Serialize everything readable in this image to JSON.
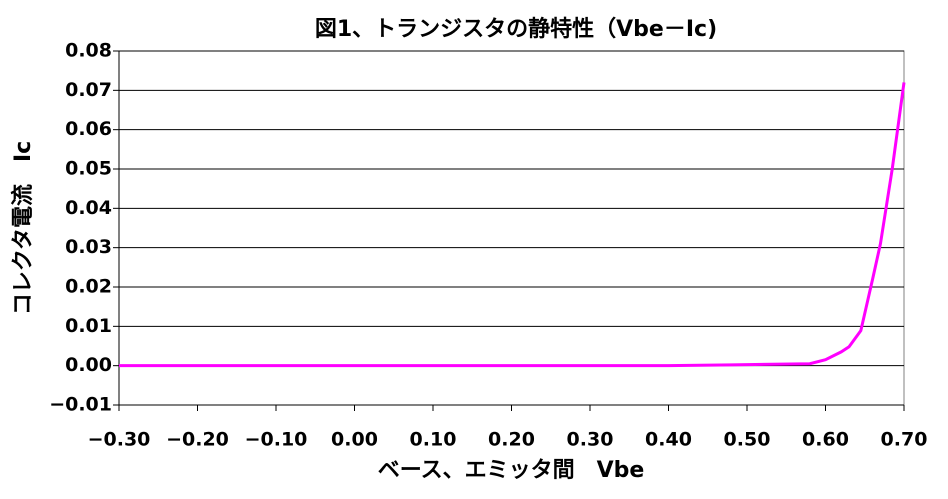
{
  "chart_data": {
    "type": "line",
    "title": "図1、トランジスタの静特性（Vbe－Ic)",
    "x_label": "ベース、エミッタ間　Vbe",
    "y_label": "コレクタ電流　Ic",
    "x": [
      -0.3,
      -0.2,
      -0.1,
      0,
      0.1,
      0.2,
      0.3,
      0.4,
      0.48,
      0.58,
      0.6,
      0.62,
      0.63,
      0.645,
      0.66,
      0.67,
      0.685,
      0.7
    ],
    "series": [
      {
        "color": "#ff00ff",
        "values": [
          0,
          0,
          0,
          0,
          0,
          0,
          0,
          0,
          0.0002,
          0.0005,
          0.0015,
          0.0035,
          0.0048,
          0.0089,
          0.022,
          0.031,
          0.05,
          0.072
        ]
      }
    ],
    "xlim": [
      -0.3,
      0.7
    ],
    "xticks": [
      {
        "value": -0.3,
        "label": "−0.30"
      },
      {
        "value": -0.2,
        "label": "−0.20"
      },
      {
        "value": -0.1,
        "label": "−0.10"
      },
      {
        "value": 0,
        "label": "0.00"
      },
      {
        "value": 0.1,
        "label": "0.10"
      },
      {
        "value": 0.2,
        "label": "0.20"
      },
      {
        "value": 0.3,
        "label": "0.30"
      },
      {
        "value": 0.4,
        "label": "0.40"
      },
      {
        "value": 0.5,
        "label": "0.50"
      },
      {
        "value": 0.6,
        "label": "0.60"
      },
      {
        "value": 0.7,
        "label": "0.70"
      }
    ],
    "ylim": [
      -0.01,
      0.08
    ],
    "yticks": [
      {
        "value": -0.01,
        "label": "−0.01"
      },
      {
        "value": 0,
        "label": "0.00"
      },
      0.01,
      0.02,
      0.03,
      0.04,
      0.05,
      0.06,
      0.07,
      0.08
    ],
    "grid": true
  }
}
